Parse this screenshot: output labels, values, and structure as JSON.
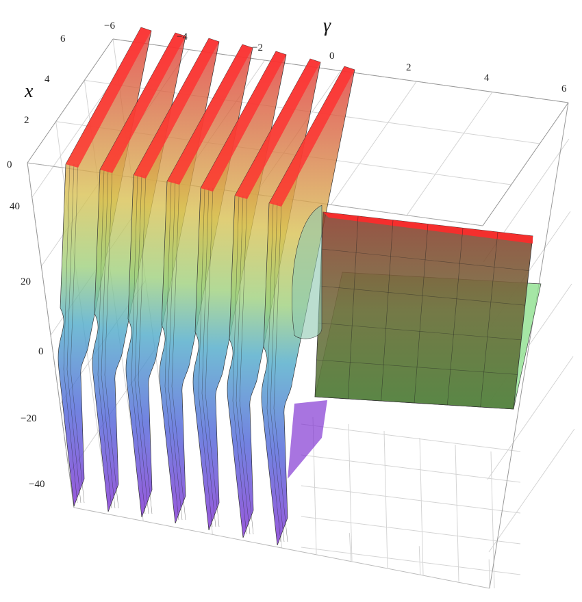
{
  "chart_data": {
    "type": "surface3d",
    "title": "",
    "axes": {
      "gamma": {
        "label": "γ",
        "range": [
          -6,
          6
        ],
        "ticks": [
          "-6",
          "-4",
          "-2",
          "0",
          "2",
          "4",
          "6"
        ]
      },
      "x": {
        "label": "x",
        "range": [
          0,
          6
        ],
        "ticks": [
          "0",
          "2",
          "4",
          "6"
        ]
      },
      "z": {
        "label": "",
        "range": [
          -50,
          50
        ],
        "ticks": [
          "40",
          "20",
          "0",
          "-20",
          "-40"
        ]
      }
    },
    "grid": true,
    "box": true,
    "colors": {
      "high": "#ff2a2a",
      "mid": "#d8c050",
      "low_mid": "#4aa8c8",
      "low": "#7a2ad0",
      "flat_sheet": "#7a5a3a",
      "flat_sheet_under": "#8ee08e"
    }
  }
}
